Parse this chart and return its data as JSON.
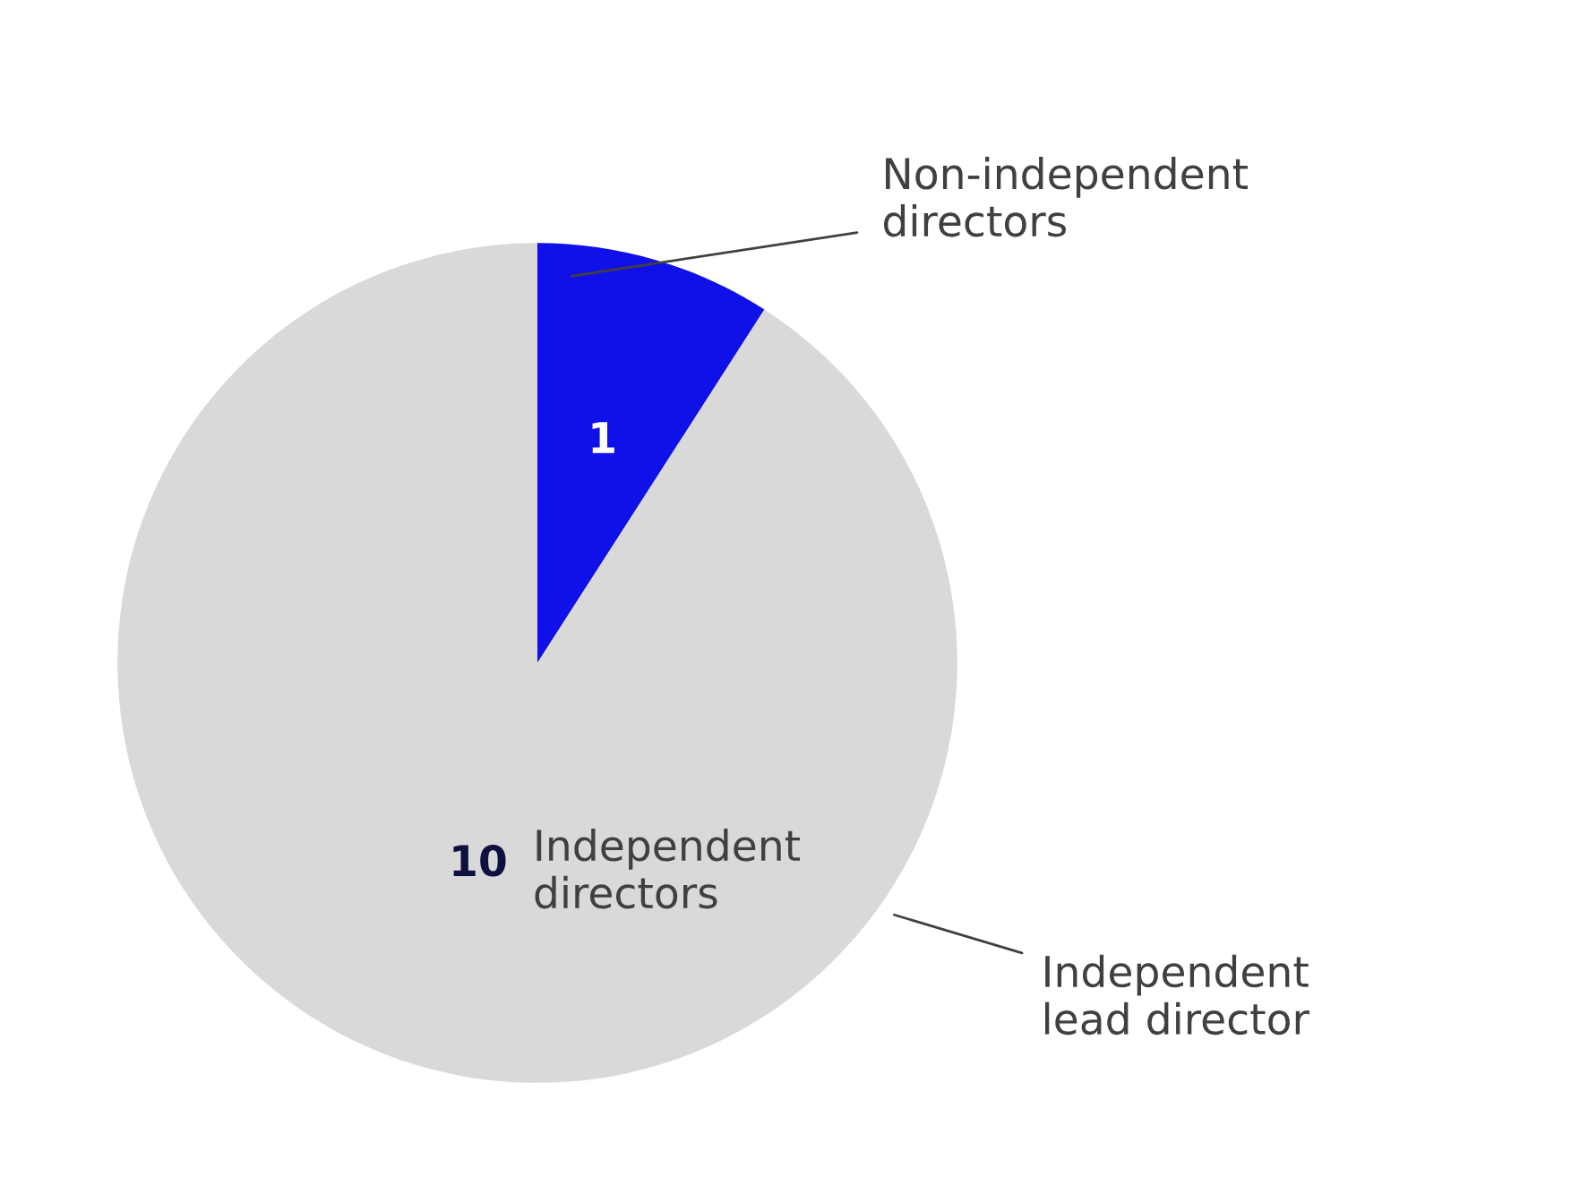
{
  "chart_data": {
    "type": "pie",
    "categories": [
      "Non-independent directors",
      "Independent directors"
    ],
    "values": [
      1,
      10
    ],
    "colors": [
      "#1010e8",
      "#d9d9d9"
    ],
    "data_labels": true,
    "annotations": [
      "Independent lead director"
    ]
  }
}
